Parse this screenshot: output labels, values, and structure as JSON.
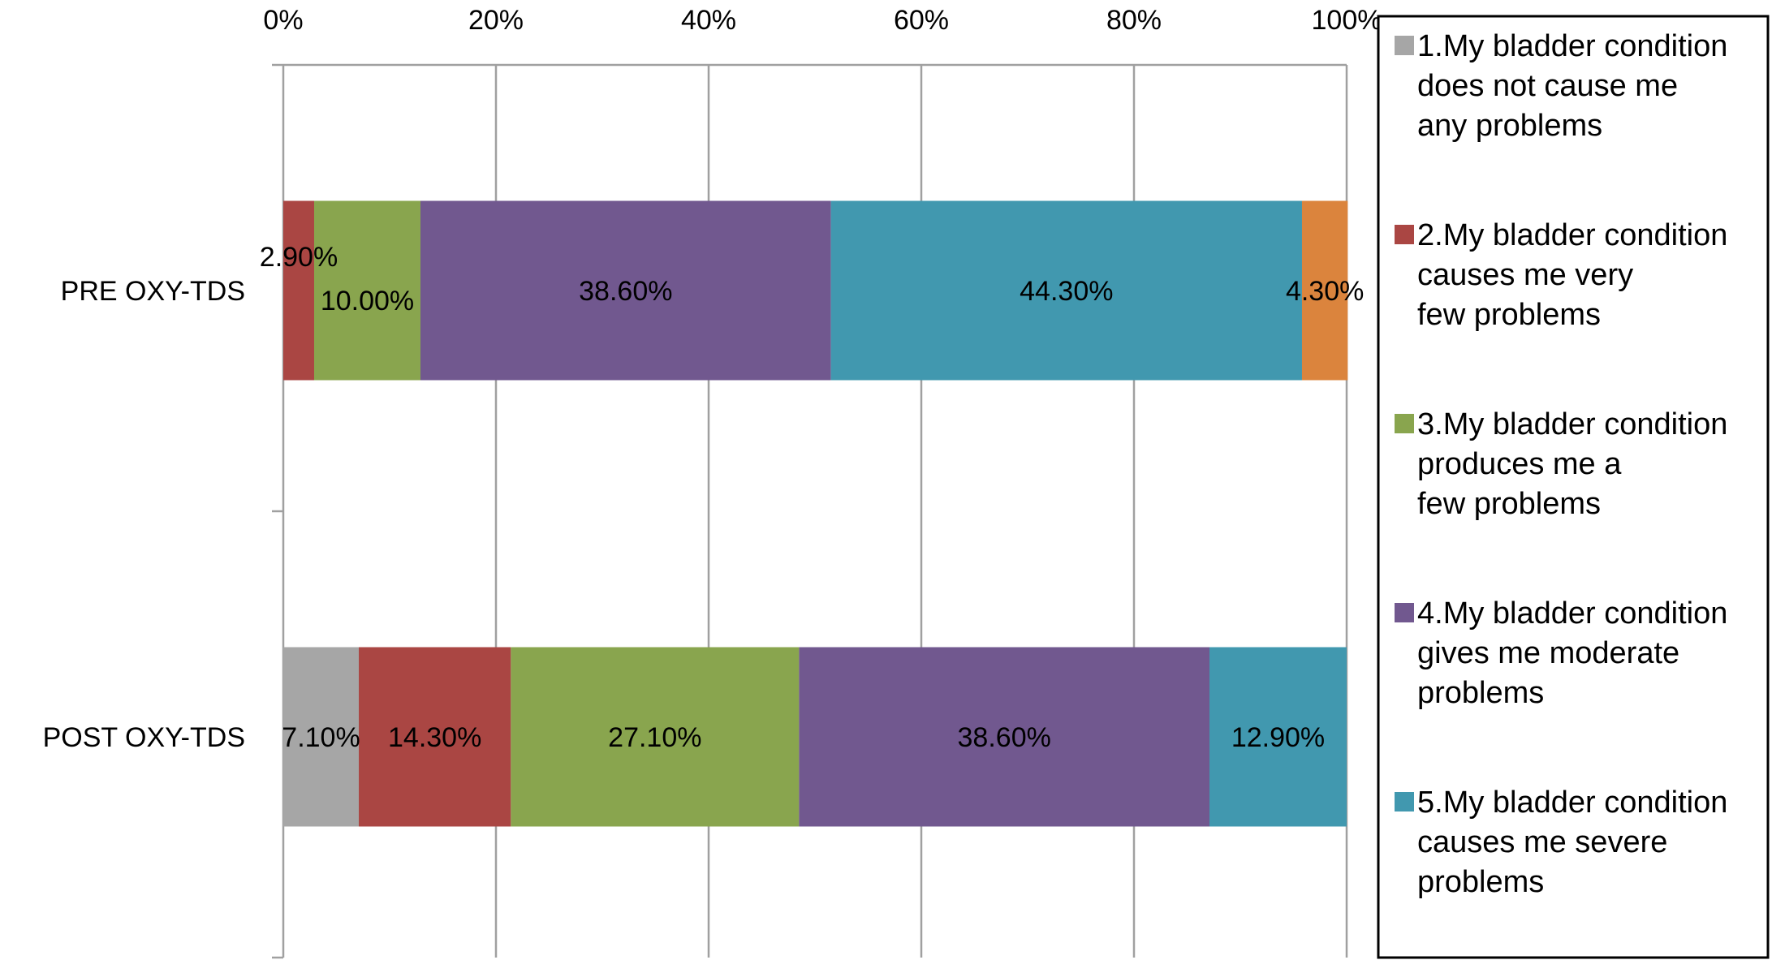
{
  "chart_data": {
    "type": "bar",
    "orientation": "horizontal",
    "stacked": true,
    "title": "",
    "xlabel": "",
    "ylabel": "",
    "xlim": [
      0,
      100
    ],
    "x_ticks": [
      "0%",
      "20%",
      "40%",
      "60%",
      "80%",
      "100%"
    ],
    "x_tick_values": [
      0,
      20,
      40,
      60,
      80,
      100
    ],
    "x_axis_position": "top",
    "grid": "vertical",
    "legend_position": "right",
    "categories": [
      "PRE OXY-TDS",
      "POST OXY-TDS"
    ],
    "series": [
      {
        "name": "1.My bladder condition does not cause me any problems",
        "legend_lines": [
          "1.My bladder condition",
          "does not cause me",
          "any problems"
        ],
        "color": "#a6a6a6",
        "values": [
          0,
          7.1
        ],
        "labels": [
          "",
          "7.10%"
        ]
      },
      {
        "name": "2.My bladder condition causes me very few problems",
        "legend_lines": [
          "2.My bladder condition",
          "causes me very",
          "few problems"
        ],
        "color": "#aa4643",
        "values": [
          2.9,
          14.3
        ],
        "labels": [
          "2.90%",
          "14.30%"
        ]
      },
      {
        "name": "3.My bladder condition produces me a few problems",
        "legend_lines": [
          "3.My bladder condition",
          "produces me a",
          "few problems"
        ],
        "color": "#89a54e",
        "values": [
          10.0,
          27.1
        ],
        "labels": [
          "10.00%",
          "27.10%"
        ]
      },
      {
        "name": "4.My bladder condition gives me moderate problems",
        "legend_lines": [
          "4.My bladder condition",
          "gives me moderate",
          "problems"
        ],
        "color": "#71588f",
        "values": [
          38.6,
          38.6
        ],
        "labels": [
          "38.60%",
          "38.60%"
        ]
      },
      {
        "name": "5.My bladder condition causes me severe problems",
        "legend_lines": [
          "5.My bladder condition",
          "causes me severe",
          "problems"
        ],
        "color": "#4198af",
        "values": [
          44.3,
          12.9
        ],
        "labels": [
          "44.30%",
          "12.90%"
        ]
      },
      {
        "name": "",
        "legend_lines": [],
        "color": "#db843d",
        "values": [
          4.3,
          0
        ],
        "labels": [
          "4.30%",
          ""
        ]
      }
    ]
  }
}
